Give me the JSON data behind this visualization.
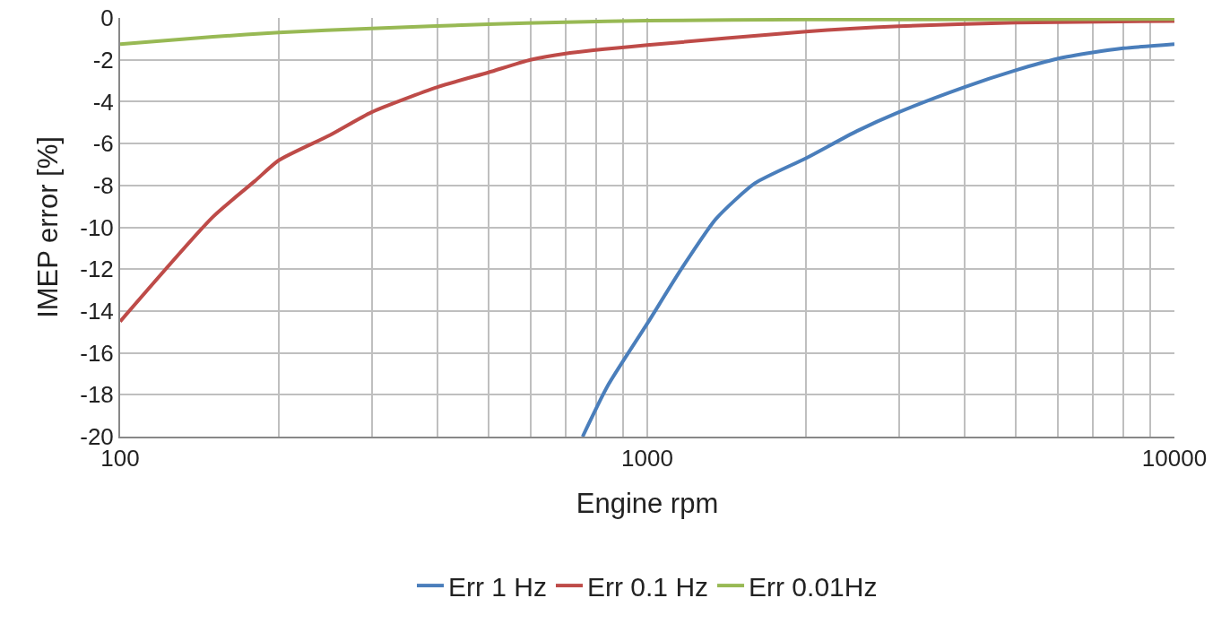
{
  "chart_data": {
    "type": "line",
    "xlabel": "Engine rpm",
    "ylabel": "IMEP error [%]",
    "log": "x",
    "grid": true,
    "legend": "bottom",
    "marker": "none",
    "line_style": "solid",
    "xlim": [
      100,
      10000
    ],
    "xticks": [
      100,
      1000,
      10000
    ],
    "ylim": [
      -20,
      0
    ],
    "yticks": [
      0,
      -2,
      -4,
      -6,
      -8,
      -10,
      -12,
      -14,
      -16,
      -18,
      -20
    ],
    "series": [
      {
        "name": "Err 1 Hz",
        "color": "#4a7ebb",
        "x": [
          754,
          840,
          1000,
          1160,
          1350,
          1600,
          2000,
          2500,
          3000,
          4000,
          5000,
          6000,
          7000,
          8000,
          10000
        ],
        "values": [
          -20,
          -17.6,
          -14.6,
          -12,
          -9.6,
          -7.9,
          -6.7,
          -5.4,
          -4.5,
          -3.3,
          -2.5,
          -1.95,
          -1.65,
          -1.45,
          -1.25
        ]
      },
      {
        "name": "Err 0.1 Hz",
        "color": "#be4b48",
        "x": [
          100,
          150,
          180,
          200,
          250,
          300,
          400,
          500,
          600,
          700,
          1000,
          2000,
          3000,
          5000,
          10000
        ],
        "values": [
          -14.5,
          -9.5,
          -7.8,
          -6.8,
          -5.6,
          -4.5,
          -3.3,
          -2.6,
          -2,
          -1.7,
          -1.3,
          -0.65,
          -0.4,
          -0.22,
          -0.15
        ]
      },
      {
        "name": "Err 0.01Hz",
        "color": "#98b954",
        "x": [
          100,
          150,
          200,
          300,
          500,
          700,
          1000,
          2000,
          10000
        ],
        "values": [
          -1.25,
          -0.9,
          -0.7,
          -0.5,
          -0.3,
          -0.2,
          -0.13,
          -0.08,
          -0.05
        ]
      }
    ]
  }
}
